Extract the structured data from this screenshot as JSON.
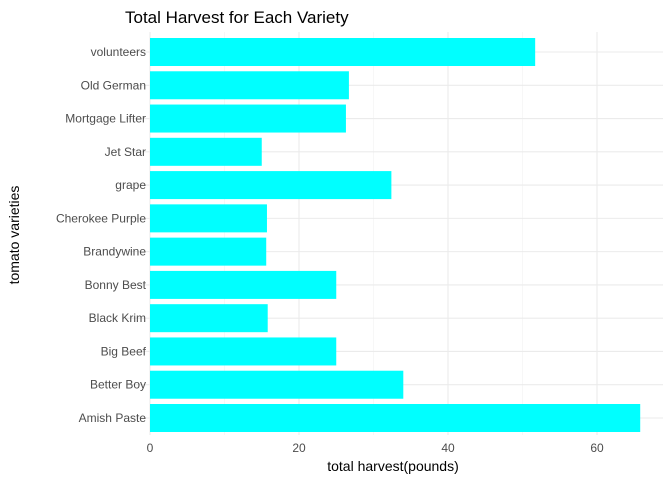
{
  "chart_data": {
    "type": "bar",
    "orientation": "horizontal",
    "title": "Total Harvest for Each Variety",
    "xlabel": "total harvest(pounds)",
    "ylabel": "tomato varieties",
    "categories": [
      "Amish Paste",
      "Better Boy",
      "Big Beef",
      "Black Krim",
      "Bonny Best",
      "Brandywine",
      "Cherokee Purple",
      "grape",
      "Jet Star",
      "Mortgage Lifter",
      "Old German",
      "volunteers"
    ],
    "values": [
      65.8,
      34.0,
      25.0,
      15.8,
      25.0,
      15.6,
      15.7,
      32.4,
      15.0,
      26.3,
      26.7,
      51.7
    ],
    "xlim": [
      0,
      70
    ],
    "xticks": [
      0,
      20,
      40,
      60
    ],
    "bar_color": "#00FFFF",
    "grid": true,
    "legend": "none"
  }
}
